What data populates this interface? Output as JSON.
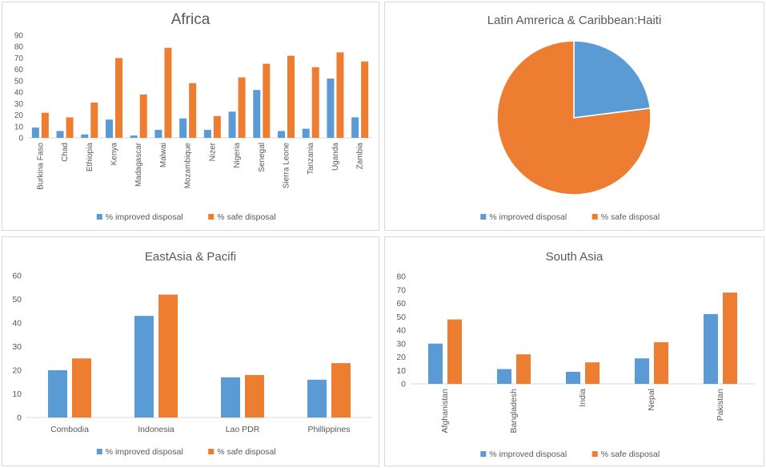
{
  "colors": {
    "improved": "#5b9bd5",
    "safe": "#ed7d31",
    "axis": "#d9d9d9",
    "text": "#595959"
  },
  "legend": {
    "improved_label": "% improved disposal",
    "safe_label": "% safe disposal"
  },
  "chart_data": [
    {
      "type": "bar",
      "title": "Africa",
      "categories": [
        "Burkina Faso",
        "Chad",
        "Ethiopia",
        "Kenya",
        "Madagascar",
        "Malwai",
        "Mozambique",
        "Nizer",
        "Nigeria",
        "Senegal",
        "Sierra Leone",
        "Tanzania",
        "Uganda",
        "Zambia"
      ],
      "series": [
        {
          "name": "% improved disposal",
          "values": [
            9,
            6,
            3,
            16,
            2,
            7,
            17,
            7,
            23,
            42,
            6,
            8,
            52,
            18
          ]
        },
        {
          "name": "% safe disposal",
          "values": [
            22,
            18,
            31,
            70,
            38,
            79,
            48,
            19,
            53,
            65,
            72,
            62,
            75,
            67
          ]
        }
      ],
      "ylim": [
        0,
        90
      ],
      "yticks": [
        0,
        10,
        20,
        30,
        40,
        50,
        60,
        70,
        80,
        90
      ],
      "xlabel": "",
      "ylabel": "",
      "legend_position": "bottom",
      "grid": false
    },
    {
      "type": "pie",
      "title": "Latin Amrerica  & Caribbean:Haiti",
      "labels": [
        "% improved disposal",
        "% safe disposal"
      ],
      "values": [
        23,
        77
      ],
      "legend_position": "bottom"
    },
    {
      "type": "bar",
      "title": "EastAsia & Pacifi",
      "categories": [
        "Combodia",
        "Indonesia",
        "Lao PDR",
        "Phillippines"
      ],
      "series": [
        {
          "name": "% improved disposal",
          "values": [
            20,
            43,
            17,
            16
          ]
        },
        {
          "name": "% safe disposal",
          "values": [
            25,
            52,
            18,
            23
          ]
        }
      ],
      "ylim": [
        0,
        60
      ],
      "yticks": [
        0,
        10,
        20,
        30,
        40,
        50,
        60
      ],
      "xlabel": "",
      "ylabel": "",
      "legend_position": "bottom",
      "grid": false
    },
    {
      "type": "bar",
      "title": "South Asia",
      "categories": [
        "Afghanistan",
        "Bangladesh",
        "India",
        "Nepal",
        "Pakistan"
      ],
      "series": [
        {
          "name": "% improved disposal",
          "values": [
            30,
            11,
            9,
            19,
            52
          ]
        },
        {
          "name": "% safe disposal",
          "values": [
            48,
            22,
            16,
            31,
            68
          ]
        }
      ],
      "ylim": [
        0,
        80
      ],
      "yticks": [
        0,
        10,
        20,
        30,
        40,
        50,
        60,
        70,
        80
      ],
      "xlabel": "",
      "ylabel": "",
      "legend_position": "bottom",
      "grid": false
    }
  ]
}
